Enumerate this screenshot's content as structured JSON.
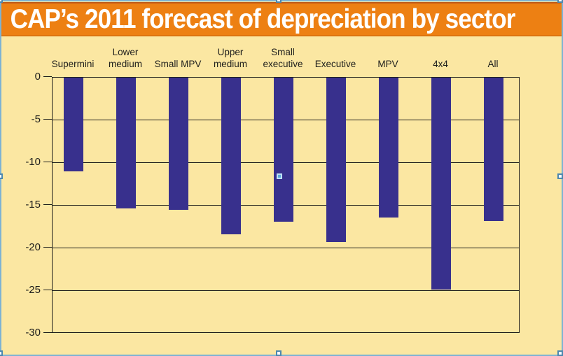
{
  "header": {
    "title": "CAP’s 2011 forecast of depreciation by sector"
  },
  "chart_data": {
    "type": "bar",
    "title": "CAP’s 2011 forecast of depreciation by sector",
    "categories": [
      "Supermini",
      "Lower medium",
      "Small MPV",
      "Upper medium",
      "Small executive",
      "Executive",
      "MPV",
      "4x4",
      "All"
    ],
    "categories_display": [
      "Supermini",
      "Lower\nmedium",
      "Small MPV",
      "Upper\nmedium",
      "Small\nexecutive",
      "Executive",
      "MPV",
      "4x4",
      "All"
    ],
    "values": [
      -11.0,
      -15.3,
      -15.5,
      -18.4,
      -16.9,
      -19.3,
      -16.4,
      -24.8,
      -16.8
    ],
    "xlabel": "",
    "ylabel": "",
    "ylim": [
      -30,
      0
    ],
    "yticks": [
      0,
      -5,
      -10,
      -15,
      -20,
      -25,
      -30
    ],
    "ytick_labels": [
      "0",
      "-5",
      "-10",
      "-15",
      "-20",
      "-25",
      "-30"
    ],
    "grid": true,
    "legend": "none",
    "bar_color": "#38308D",
    "background_color": "#FBE7A2",
    "banner_color": "#ED8013"
  },
  "selection": {
    "border_color": "#7DB3D3",
    "handle_names": [
      "top-left",
      "top-center",
      "top-right",
      "middle-left",
      "middle-right",
      "bottom-left",
      "bottom-center",
      "bottom-right",
      "center-marker"
    ]
  }
}
